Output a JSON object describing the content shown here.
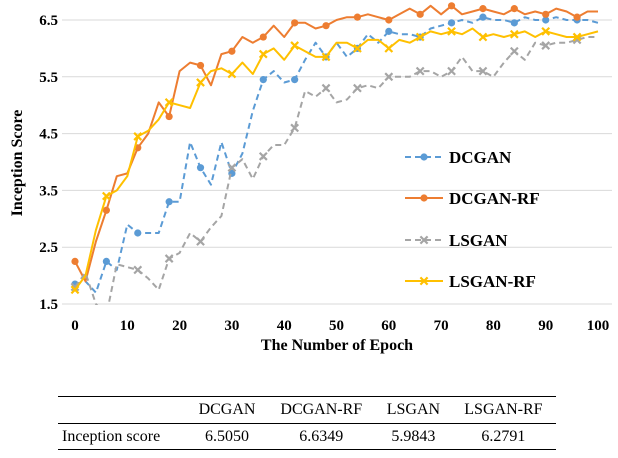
{
  "chart_data": {
    "type": "line",
    "title": "",
    "xlabel": "The Number of Epoch",
    "ylabel": "Inception Score",
    "xlim": [
      0,
      100
    ],
    "ylim": [
      1.5,
      6.5
    ],
    "xticks": [
      0,
      10,
      20,
      30,
      40,
      50,
      60,
      70,
      80,
      90,
      100
    ],
    "yticks": [
      1.5,
      2.5,
      3.5,
      4.5,
      5.5,
      6.5
    ],
    "grid": true,
    "legend_position": "right",
    "series": [
      {
        "name": "DCGAN",
        "color": "#5B9BD5",
        "style": "dashed",
        "marker": "circle",
        "x": [
          0,
          2,
          4,
          6,
          8,
          10,
          12,
          14,
          16,
          18,
          20,
          22,
          24,
          26,
          28,
          30,
          32,
          34,
          36,
          38,
          40,
          42,
          44,
          46,
          48,
          50,
          52,
          54,
          56,
          58,
          60,
          62,
          64,
          66,
          68,
          70,
          72,
          74,
          76,
          78,
          80,
          82,
          84,
          86,
          88,
          90,
          92,
          94,
          96,
          98,
          100
        ],
        "y": [
          1.85,
          1.9,
          1.7,
          2.25,
          2.1,
          2.9,
          2.75,
          2.75,
          2.75,
          3.3,
          3.3,
          4.35,
          3.9,
          3.6,
          4.35,
          3.8,
          4.15,
          4.9,
          5.45,
          5.6,
          5.4,
          5.45,
          5.8,
          6.1,
          5.85,
          6.1,
          5.85,
          6.0,
          6.25,
          6.1,
          6.3,
          6.25,
          6.25,
          6.2,
          6.35,
          6.4,
          6.45,
          6.5,
          6.45,
          6.55,
          6.5,
          6.5,
          6.45,
          6.55,
          6.5,
          6.5,
          6.55,
          6.5,
          6.5,
          6.5,
          6.45
        ]
      },
      {
        "name": "DCGAN-RF",
        "color": "#ED7D31",
        "style": "solid",
        "marker": "circle",
        "x": [
          0,
          2,
          4,
          6,
          8,
          10,
          12,
          14,
          16,
          18,
          20,
          22,
          24,
          26,
          28,
          30,
          32,
          34,
          36,
          38,
          40,
          42,
          44,
          46,
          48,
          50,
          52,
          54,
          56,
          58,
          60,
          62,
          64,
          66,
          68,
          70,
          72,
          74,
          76,
          78,
          80,
          82,
          84,
          86,
          88,
          90,
          92,
          94,
          96,
          98,
          100
        ],
        "y": [
          2.25,
          1.9,
          2.6,
          3.15,
          3.75,
          3.8,
          4.25,
          4.5,
          5.05,
          4.8,
          5.6,
          5.75,
          5.7,
          5.35,
          5.9,
          5.95,
          6.2,
          6.1,
          6.2,
          6.4,
          6.2,
          6.45,
          6.45,
          6.35,
          6.4,
          6.5,
          6.55,
          6.55,
          6.6,
          6.55,
          6.5,
          6.6,
          6.7,
          6.6,
          6.75,
          6.6,
          6.75,
          6.6,
          6.65,
          6.7,
          6.65,
          6.6,
          6.7,
          6.6,
          6.65,
          6.6,
          6.7,
          6.65,
          6.55,
          6.65,
          6.65
        ]
      },
      {
        "name": "LSGAN",
        "color": "#A5A5A5",
        "style": "dashed",
        "marker": "x",
        "x": [
          0,
          2,
          4,
          6,
          8,
          10,
          12,
          14,
          16,
          18,
          20,
          22,
          24,
          26,
          28,
          30,
          32,
          34,
          36,
          38,
          40,
          42,
          44,
          46,
          48,
          50,
          52,
          54,
          56,
          58,
          60,
          62,
          64,
          66,
          68,
          70,
          72,
          74,
          76,
          78,
          80,
          82,
          84,
          86,
          88,
          90,
          92,
          94,
          96,
          98,
          100
        ],
        "y": [
          1.8,
          2.05,
          1.5,
          1.3,
          2.2,
          2.15,
          2.1,
          1.95,
          1.75,
          2.3,
          2.4,
          2.75,
          2.6,
          2.85,
          3.05,
          3.9,
          4.05,
          3.7,
          4.1,
          4.3,
          4.3,
          4.6,
          5.25,
          5.15,
          5.3,
          5.05,
          5.1,
          5.3,
          5.35,
          5.3,
          5.5,
          5.5,
          5.5,
          5.6,
          5.6,
          5.5,
          5.6,
          5.85,
          5.6,
          5.6,
          5.5,
          5.75,
          5.95,
          5.8,
          6.1,
          6.05,
          6.1,
          6.1,
          6.15,
          6.2,
          6.2
        ]
      },
      {
        "name": "LSGAN-RF",
        "color": "#FFC000",
        "style": "solid",
        "marker": "x",
        "x": [
          0,
          2,
          4,
          6,
          8,
          10,
          12,
          14,
          16,
          18,
          20,
          22,
          24,
          26,
          28,
          30,
          32,
          34,
          36,
          38,
          40,
          42,
          44,
          46,
          48,
          50,
          52,
          54,
          56,
          58,
          60,
          62,
          64,
          66,
          68,
          70,
          72,
          74,
          76,
          78,
          80,
          82,
          84,
          86,
          88,
          90,
          92,
          94,
          96,
          98,
          100
        ],
        "y": [
          1.75,
          2.0,
          2.8,
          3.4,
          3.5,
          3.75,
          4.45,
          4.55,
          4.75,
          5.05,
          5.0,
          4.95,
          5.4,
          5.6,
          5.65,
          5.55,
          5.75,
          5.55,
          5.9,
          6.0,
          5.8,
          6.05,
          5.95,
          5.85,
          5.85,
          6.1,
          6.1,
          6.0,
          6.15,
          6.15,
          6.0,
          6.15,
          6.1,
          6.2,
          6.3,
          6.25,
          6.3,
          6.25,
          6.35,
          6.2,
          6.25,
          6.2,
          6.25,
          6.3,
          6.2,
          6.3,
          6.25,
          6.2,
          6.2,
          6.25,
          6.3
        ]
      }
    ]
  },
  "table": {
    "headers": [
      "",
      "DCGAN",
      "DCGAN-RF",
      "LSGAN",
      "LSGAN-RF"
    ],
    "row_label": "Inception score",
    "values": [
      "6.5050",
      "6.6349",
      "5.9843",
      "6.2791"
    ]
  }
}
